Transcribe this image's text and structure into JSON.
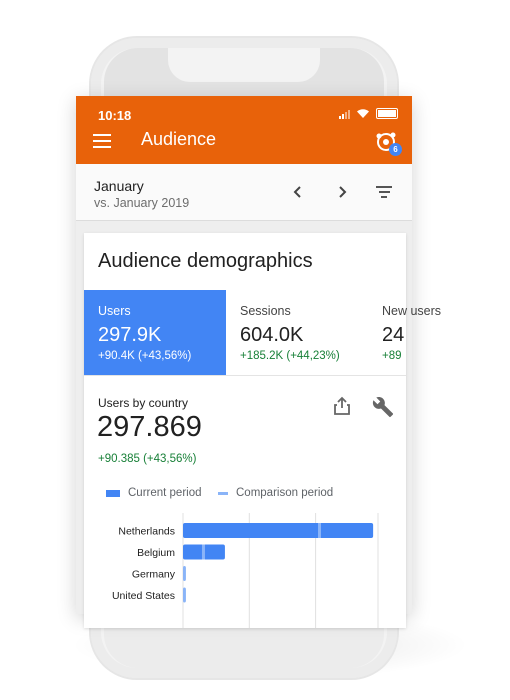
{
  "status": {
    "time": "10:18"
  },
  "appbar": {
    "title": "Audience",
    "notification_count": "6"
  },
  "date_range": {
    "period": "January",
    "comparison": "vs. January 2019"
  },
  "card": {
    "title": "Audience demographics",
    "tabs": [
      {
        "label": "Users",
        "value": "297.9K",
        "change": "+90.4K (+43,56%)"
      },
      {
        "label": "Sessions",
        "value": "604.0K",
        "change": "+185.2K (+44,23%)"
      },
      {
        "label": "New users",
        "value": "24",
        "change": "+89"
      }
    ],
    "section_label": "Users by country",
    "total": "297.869",
    "total_change": "+90.385 (+43,56%)",
    "legend": {
      "current": "Current period",
      "comparison": "Comparison period"
    }
  },
  "colors": {
    "accent": "#e8620a",
    "current": "#4285f4",
    "comparison": "#8ab4f8",
    "positive": "#188038"
  },
  "chart_data": {
    "type": "bar",
    "orientation": "horizontal",
    "categories": [
      "Netherlands",
      "Belgium",
      "Germany",
      "United States"
    ],
    "series": [
      {
        "name": "Current period",
        "values": [
          195,
          43,
          3,
          3
        ]
      },
      {
        "name": "Comparison period",
        "values": [
          140,
          21,
          3,
          3
        ]
      }
    ],
    "xlim": [
      0,
      200
    ],
    "grid": true
  }
}
